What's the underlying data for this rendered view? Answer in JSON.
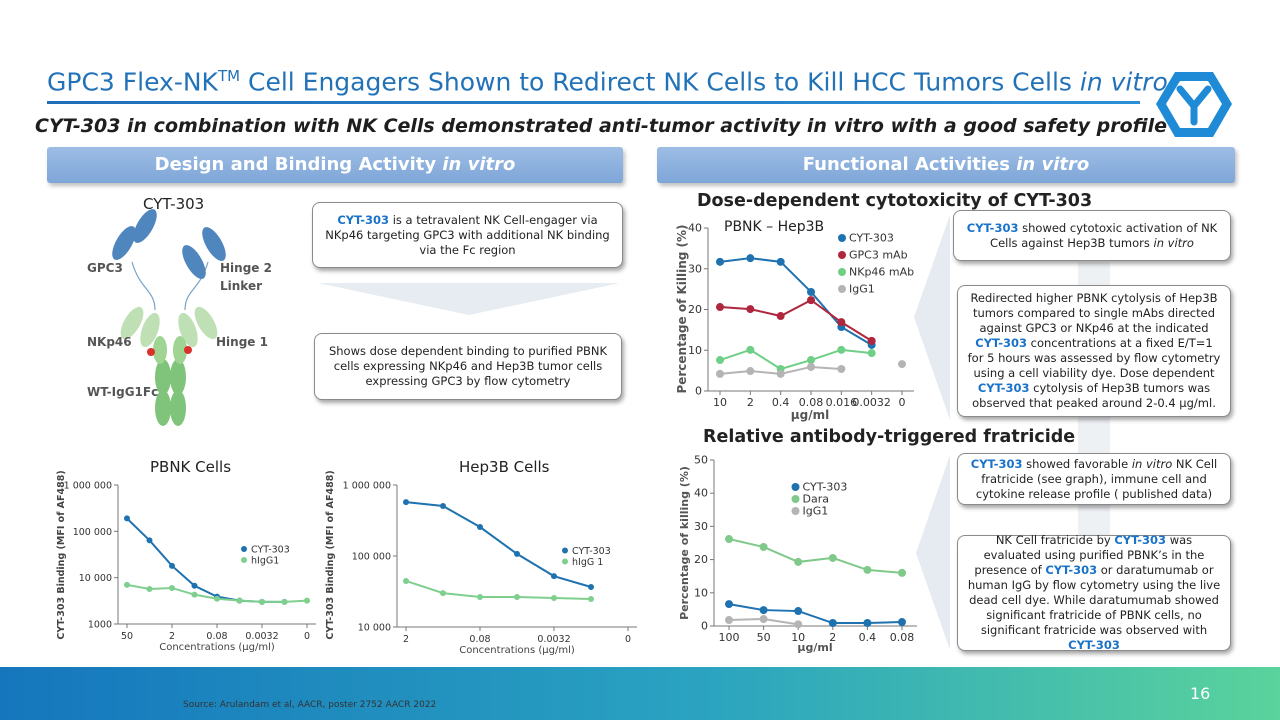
{
  "slide": {
    "title": [
      "GPC3 Flex-NK",
      {
        "text": "TM",
        "style": "superscript"
      },
      " Cell Engagers Shown to Redirect NK Cells to Kill HCC Tumors Cells ",
      {
        "text": "in vitro",
        "style": "italic"
      }
    ],
    "subtitle": "CYT-303 in combination with NK Cells demonstrated anti-tumor activity in vitro with a good safety profile",
    "left_header": [
      "Design and Binding Activity ",
      {
        "text": "in vitro",
        "style": "italic"
      }
    ],
    "right_header": [
      "Functional Activities ",
      {
        "text": "in vitro",
        "style": "italic"
      }
    ],
    "diagram": {
      "name": "CYT-303",
      "labels": [
        "GPC3",
        "Hinge 2",
        "Linker",
        "NKp46",
        "Hinge 1",
        "WT-IgG1Fc"
      ]
    },
    "box_engager": [
      {
        "text": "CYT-303",
        "style": "brand"
      },
      " is a tetravalent NK Cell-engager via NKp46 targeting GPC3 with additional NK binding via the Fc region"
    ],
    "box_binding": [
      "Shows dose dependent binding to purified PBNK cells expressing NKp46 and Hep3B tumor cells expressing GPC3 by flow cytometry"
    ],
    "box_cytotoxic": [
      {
        "text": "CYT-303",
        "style": "brand"
      },
      " showed cytotoxic activation of NK Cells against Hep3B tumors ",
      {
        "text": "in vitro",
        "style": "italic"
      }
    ],
    "box_cytolysis": [
      "Redirected higher PBNK cytolysis of Hep3B tumors compared to single mAbs directed against GPC3 or NKp46 at the indicated ",
      {
        "text": "CYT-303",
        "style": "brand"
      },
      " concentrations at a fixed E/T=1 for 5 hours was assessed by flow cytometry using a cell viability dye. Dose dependent ",
      {
        "text": "CYT-303",
        "style": "brand"
      },
      " cytolysis of Hep3B tumors was observed that peaked around 2-0.4 µg/ml."
    ],
    "box_favorable": [
      {
        "text": "CYT-303",
        "style": "brand"
      },
      " showed favorable ",
      {
        "text": "in vitro",
        "style": "italic"
      },
      " NK Cell fratricide (see graph), immune cell and cytokine release profile ( published data)"
    ],
    "box_fratricide": [
      "NK Cell fratricide by ",
      {
        "text": "CYT-303",
        "style": "brand"
      },
      " was evaluated using purified PBNK’s in the presence of ",
      {
        "text": "CYT-303",
        "style": "brand"
      },
      " or daratumumab or human IgG by flow cytometry using the live dead cell dye. While daratumumab showed significant fratricide of PBNK cells, no significant fratricide was observed with ",
      {
        "text": "CYT-303",
        "style": "brand"
      }
    ],
    "source": "Source: Arulandam et al, AACR, poster 2752 AACR 2022",
    "page_number": "16"
  },
  "chart_data": [
    {
      "type": "line",
      "title": "PBNK Cells",
      "ylabel": "CYT-303 Binding (MFI of AF488)",
      "xlabel": "Concentrations (µg/ml)",
      "categories": [
        "50",
        null,
        "2",
        null,
        "0.08",
        null,
        "0.0032",
        null,
        "0"
      ],
      "series": [
        {
          "name": "CYT-303",
          "color": "#1f72b0",
          "values": [
            190000,
            64000,
            18000,
            6700,
            3900,
            3200,
            3000,
            3000,
            null
          ]
        },
        {
          "name": "hIgG1",
          "color": "#7fcf8f",
          "values": [
            7000,
            5700,
            6000,
            4300,
            3500,
            3200,
            3000,
            3000,
            3200
          ]
        }
      ],
      "ylog": true,
      "ylim": [
        1000,
        1000000
      ],
      "yticks": [
        {
          "value": 1000000,
          "label": "1 000 000"
        },
        {
          "value": 100000,
          "label": "100 000"
        },
        {
          "value": 10000,
          "label": "10 000"
        },
        1000
      ],
      "legend": "center right"
    },
    {
      "type": "line",
      "title": "Hep3B Cells",
      "ylabel": "CYT-303 Binding (MFI of AF488)",
      "xlabel": "Concentrations (µg/ml)",
      "categories": [
        "2",
        null,
        "0.08",
        null,
        "0.0032",
        null,
        "0"
      ],
      "series": [
        {
          "name": "CYT-303",
          "color": "#1f72b0",
          "values": [
            574000,
            506000,
            256000,
            107000,
            52000,
            36600,
            null
          ]
        },
        {
          "name": "hIgG 1",
          "color": "#7fcf8f",
          "values": [
            44500,
            30000,
            26500,
            26500,
            25600,
            24800,
            null
          ]
        }
      ],
      "ylog": true,
      "ylim": [
        10000,
        1000000
      ],
      "yticks": [
        {
          "value": 1000000,
          "label": "1 000 000"
        },
        {
          "value": 100000,
          "label": "100 000"
        },
        {
          "value": 10000,
          "label": "10 000"
        }
      ],
      "legend": "center right"
    },
    {
      "type": "line",
      "title": "Dose-dependent cytotoxicity of CYT-303",
      "annotation": "PBNK – Hep3B",
      "ylabel": "Percentage of Killing (%)",
      "xlabel": "µg/ml",
      "categories": [
        "10",
        "2",
        "0.4",
        "0.08",
        "0.016",
        "0.0032",
        "0"
      ],
      "series": [
        {
          "name": "CYT-303",
          "color": "#1f72b0",
          "values": [
            31.7,
            32.6,
            31.7,
            24.3,
            15.7,
            11.3,
            null
          ]
        },
        {
          "name": "GPC3 mAb",
          "color": "#b0263c",
          "values": [
            20.6,
            20.1,
            18.4,
            22.3,
            16.9,
            12.3,
            null
          ]
        },
        {
          "name": "NKp46 mAb",
          "color": "#6fcf87",
          "values": [
            7.6,
            10.1,
            5.4,
            7.6,
            10.1,
            9.3,
            null
          ]
        },
        {
          "name": "IgG1",
          "color": "#b4b4b4",
          "values": [
            4.2,
            4.9,
            4.2,
            5.9,
            5.4,
            null,
            6.6
          ]
        }
      ],
      "ylog": false,
      "ylim": [
        0,
        40
      ],
      "yticks": [
        0,
        10,
        20,
        30,
        40
      ],
      "legend": "upper right"
    },
    {
      "type": "line",
      "title": "Relative antibody-triggered fratricide",
      "ylabel": "Percentage of killing (%)",
      "xlabel": "µg/ml",
      "categories": [
        "100",
        "50",
        "10",
        "2",
        "0.4",
        "0.08"
      ],
      "series": [
        {
          "name": "CYT-303",
          "color": "#1f72b0",
          "values": [
            6.6,
            4.8,
            4.5,
            0.9,
            0.9,
            1.2
          ]
        },
        {
          "name": "Dara",
          "color": "#7fc98a",
          "values": [
            26.2,
            23.8,
            19.3,
            20.5,
            16.9,
            16.0
          ]
        },
        {
          "name": "IgG1",
          "color": "#b4b4b4",
          "values": [
            1.8,
            2.1,
            0.5,
            null,
            null,
            null
          ]
        }
      ],
      "ylog": false,
      "ylim": [
        0,
        50
      ],
      "yticks": [
        0,
        10,
        20,
        30,
        40,
        50
      ],
      "legend": "upper center"
    }
  ]
}
